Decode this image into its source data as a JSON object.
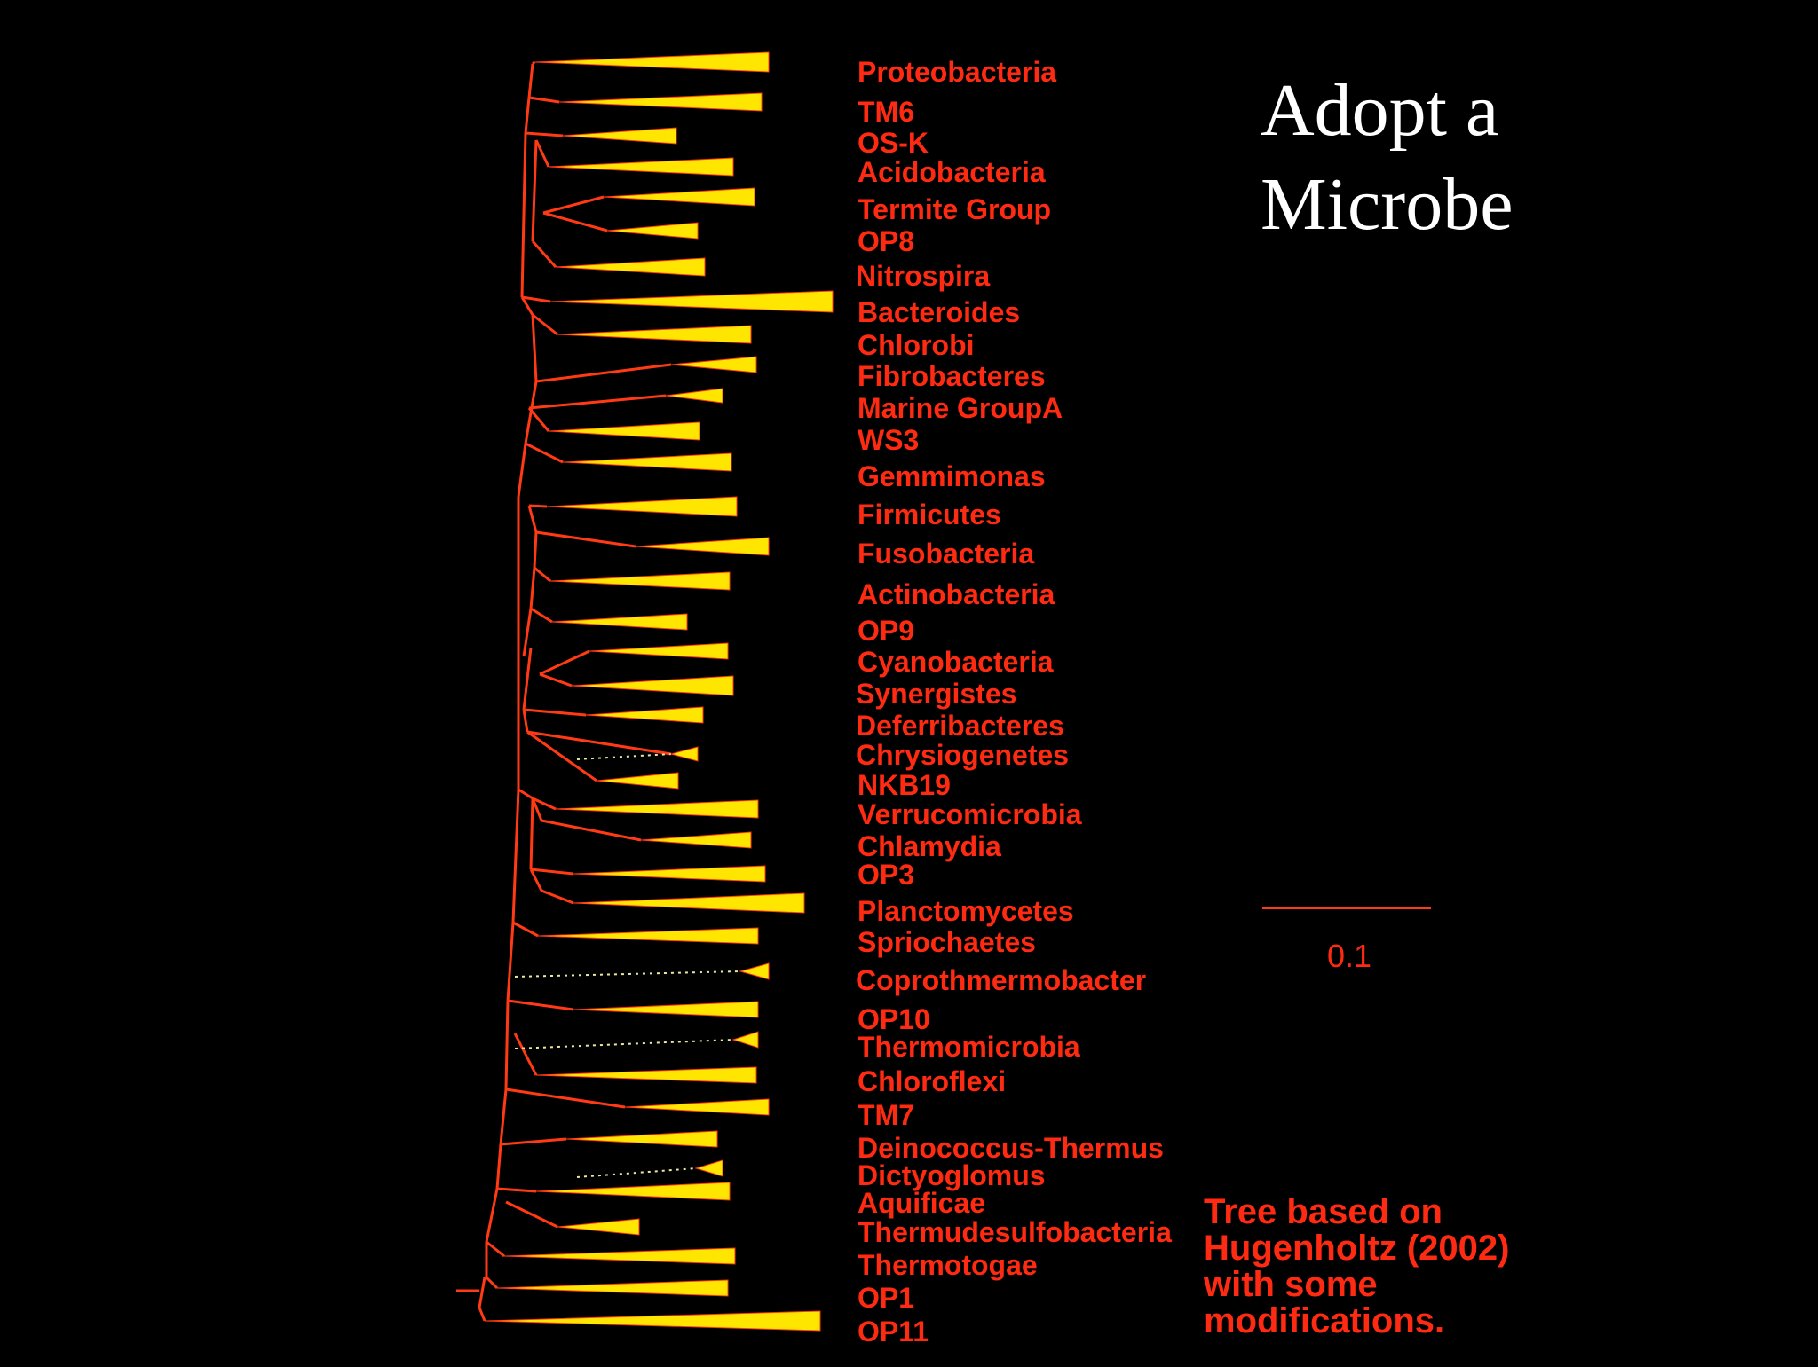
{
  "title_lines": [
    "Adopt a",
    "Microbe"
  ],
  "credit_lines": [
    "Tree based on",
    "Hugenholtz (2002)",
    "with some",
    "modifications."
  ],
  "scale_bar": {
    "label": "0.1"
  },
  "colors": {
    "branch": "#ff3a14",
    "wedge": "#ffe600",
    "label": "#ff2a12",
    "background": "#000000",
    "title": "#ffffff"
  },
  "taxa": [
    "Proteobacteria",
    "TM6",
    "OS-K",
    "Acidobacteria",
    "Termite Group",
    "OP8",
    "Nitrospira",
    "Bacteroides",
    "Chlorobi",
    "Fibrobacteres",
    "Marine GroupA",
    "WS3",
    "Gemmimonas",
    "Firmicutes",
    "Fusobacteria",
    "Actinobacteria",
    "OP9",
    "Cyanobacteria",
    "Synergistes",
    "Deferribacteres",
    "Chrysiogenetes",
    "NKB19",
    "Verrucomicrobia",
    "Chlamydia",
    "OP3",
    "Planctomycetes",
    "Spriochaetes",
    "Coprothmermobacter",
    "OP10",
    "Thermomicrobia",
    "Chloroflexi",
    "TM7",
    "Deinococcus-Thermus",
    "Dictyoglomus",
    "Aquificae",
    "Thermudesulfobacteria",
    "Thermotogae",
    "OP1",
    "OP11"
  ]
}
